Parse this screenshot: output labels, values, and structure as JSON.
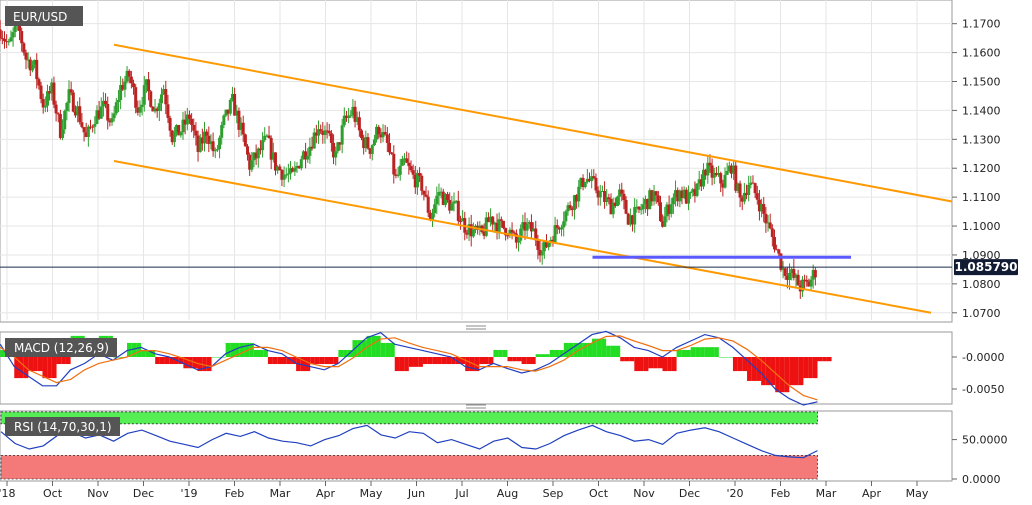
{
  "colors": {
    "bull": "#2e9e2e",
    "bear": "#bb2222",
    "channel": "#ff9900",
    "support": "#5a5aff",
    "macd_line": "#2040c0",
    "signal_line": "#f07010",
    "hist_pos": "#22dd22",
    "hist_neg": "#ee1111",
    "rsi_line": "#2040c0",
    "overbought_fill": "#55ee55",
    "oversold_fill": "#f47a7a",
    "badge_bg": "#555555",
    "price_bg": "#111b33",
    "grid": "#e6e6e6"
  },
  "chart_data": [
    {
      "type": "candlestick",
      "title": "EUR/USD",
      "current_price_label": "1.085790",
      "current_price": 1.0858,
      "ylim": [
        1.0675,
        1.1775
      ],
      "y_ticks": [
        "1.1700",
        "1.1600",
        "1.1500",
        "1.1400",
        "1.1300",
        "1.1200",
        "1.1100",
        "1.1000",
        "1.0900",
        "1.0800",
        "1.0700"
      ],
      "x_ticks": [
        "'18",
        "Oct",
        "Nov",
        "Dec",
        "'19",
        "Feb",
        "Mar",
        "Apr",
        "May",
        "Jun",
        "Jul",
        "Aug",
        "Sep",
        "Oct",
        "Nov",
        "Dec",
        "'20",
        "Feb",
        "Mar",
        "Apr",
        "May"
      ],
      "x_range_months": [
        "Sep 2018",
        "May 2020"
      ],
      "close_path": [
        1.168,
        1.162,
        1.17,
        1.158,
        1.155,
        1.142,
        1.147,
        1.133,
        1.145,
        1.14,
        1.13,
        1.138,
        1.141,
        1.135,
        1.148,
        1.152,
        1.141,
        1.148,
        1.14,
        1.148,
        1.131,
        1.133,
        1.138,
        1.126,
        1.133,
        1.124,
        1.136,
        1.143,
        1.133,
        1.121,
        1.125,
        1.13,
        1.121,
        1.118,
        1.117,
        1.124,
        1.128,
        1.135,
        1.131,
        1.124,
        1.136,
        1.14,
        1.13,
        1.127,
        1.134,
        1.128,
        1.116,
        1.122,
        1.117,
        1.114,
        1.103,
        1.112,
        1.108,
        1.106,
        1.1,
        1.098,
        1.097,
        1.103,
        1.1,
        1.099,
        1.094,
        1.1,
        1.098,
        1.091,
        1.096,
        1.101,
        1.106,
        1.111,
        1.117,
        1.114,
        1.11,
        1.107,
        1.111,
        1.103,
        1.104,
        1.108,
        1.111,
        1.101,
        1.109,
        1.112,
        1.109,
        1.112,
        1.12,
        1.117,
        1.115,
        1.121,
        1.109,
        1.115,
        1.11,
        1.102,
        1.094,
        1.085,
        1.083,
        1.079,
        1.08,
        1.086
      ],
      "channel": {
        "upper": [
          [
            "Nov 2018",
            1.1627
          ],
          [
            "May 2020",
            1.1085
          ]
        ],
        "lower": [
          [
            "Nov 2018",
            1.1225
          ],
          [
            "May 2020",
            1.07
          ]
        ]
      },
      "support_line": {
        "y": 1.0892
      }
    },
    {
      "type": "line",
      "indicator": "MACD (12,26,9)",
      "y_ticks": [
        "-0.0000",
        "-0.0050"
      ],
      "macd": [
        0.002,
        -0.0015,
        -0.003,
        -0.0045,
        -0.0045,
        -0.002,
        -0.001,
        0.0005,
        -0.0005,
        0.001,
        0.0015,
        0.0005,
        0.0,
        -0.001,
        -0.002,
        -0.0015,
        0.0005,
        0.0015,
        0.002,
        0.001,
        0.0005,
        -0.001,
        -0.0015,
        -0.002,
        -0.001,
        0.001,
        0.003,
        0.0038,
        0.002,
        0.0015,
        0.001,
        0.0005,
        0.0,
        -0.0015,
        -0.002,
        -0.001,
        -0.0018,
        -0.0025,
        -0.002,
        -0.001,
        0.0005,
        0.002,
        0.0035,
        0.004,
        0.003,
        0.0015,
        0.001,
        0.0,
        0.0015,
        0.0025,
        0.0035,
        0.003,
        0.0015,
        -0.0005,
        -0.0025,
        -0.005,
        -0.0065,
        -0.0075,
        -0.007
      ],
      "signal": [
        0.0015,
        0.0,
        -0.002,
        -0.003,
        -0.004,
        -0.0035,
        -0.002,
        -0.001,
        -0.0005,
        0.0,
        0.001,
        0.001,
        0.0005,
        -0.0002,
        -0.001,
        -0.0015,
        -0.0005,
        0.0005,
        0.0015,
        0.0015,
        0.001,
        0.0,
        -0.001,
        -0.0015,
        -0.0015,
        -0.0002,
        0.0015,
        0.0028,
        0.003,
        0.0022,
        0.0015,
        0.001,
        0.0005,
        -0.0005,
        -0.0015,
        -0.0015,
        -0.0015,
        -0.002,
        -0.0022,
        -0.0015,
        -0.0005,
        0.001,
        0.0022,
        0.0032,
        0.0033,
        0.0025,
        0.0018,
        0.001,
        0.001,
        0.0018,
        0.0028,
        0.003,
        0.0025,
        0.0012,
        -0.0005,
        -0.0025,
        -0.0045,
        -0.006,
        -0.0067
      ]
    },
    {
      "type": "line",
      "indicator": "RSI (14,70,30,1)",
      "y_ticks": [
        "50.0000",
        "0.0000"
      ],
      "ylim": [
        0,
        85
      ],
      "overbought": 70,
      "oversold": 30,
      "rsi": [
        60,
        45,
        38,
        42,
        55,
        60,
        52,
        56,
        48,
        58,
        62,
        55,
        48,
        44,
        40,
        50,
        58,
        54,
        60,
        52,
        48,
        46,
        42,
        50,
        55,
        64,
        68,
        56,
        52,
        60,
        58,
        46,
        50,
        44,
        38,
        48,
        52,
        40,
        38,
        45,
        55,
        62,
        68,
        60,
        55,
        48,
        50,
        44,
        58,
        62,
        65,
        60,
        52,
        44,
        36,
        30,
        28,
        27,
        36
      ]
    }
  ]
}
